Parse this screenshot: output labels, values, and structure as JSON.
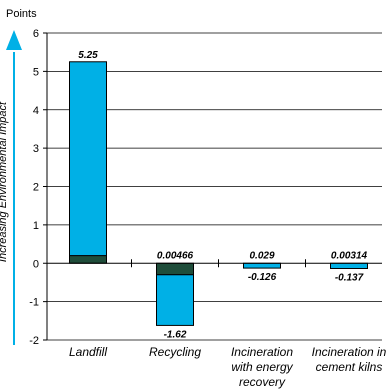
{
  "chart_data": {
    "type": "bar",
    "stacked": true,
    "unit_label": "Points",
    "side_label": "Increasing Environmental Impact",
    "ylim": [
      -2,
      6
    ],
    "yticks": [
      -2,
      -1,
      0,
      1,
      2,
      3,
      4,
      5,
      6
    ],
    "grid": true,
    "categories": [
      [
        "Landfill"
      ],
      [
        "Recycling"
      ],
      [
        "Incineration",
        "with energy",
        "recovery"
      ],
      [
        "Incineration in",
        "cement kilns"
      ]
    ],
    "segments": [
      [
        {
          "from": 0,
          "to": 0.2,
          "color": "#1f4d3a"
        },
        {
          "from": 0.2,
          "to": 5.25,
          "color": "#00b0e6"
        }
      ],
      [
        {
          "from": 0,
          "to": -0.3,
          "color": "#1f4d3a"
        },
        {
          "from": -0.3,
          "to": -1.62,
          "color": "#00b0e6"
        }
      ],
      [
        {
          "from": 0,
          "to": -0.126,
          "color": "#00b0e6"
        }
      ],
      [
        {
          "from": 0,
          "to": -0.137,
          "color": "#00b0e6"
        }
      ]
    ],
    "top_labels": [
      "5.25",
      "0.00466",
      "0.029",
      "0.00314"
    ],
    "bottom_labels": [
      "",
      "-1.62",
      "-0.126",
      "-0.137"
    ],
    "colors": {
      "primary": "#00b0e6",
      "secondary": "#1f4d3a",
      "arrow": "#00b0e6"
    }
  }
}
